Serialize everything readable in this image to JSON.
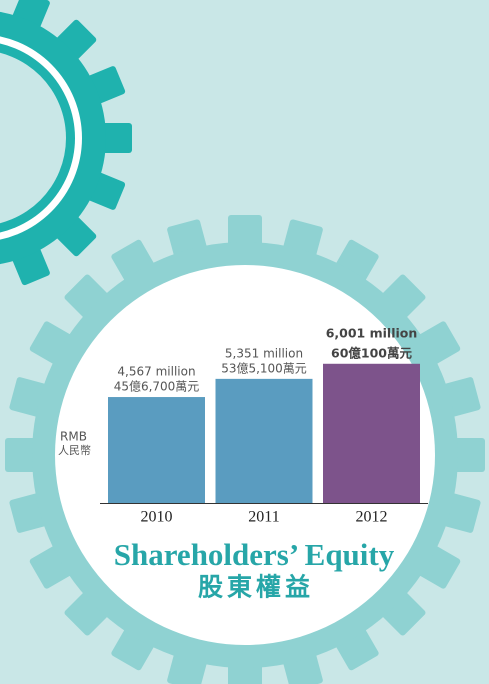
{
  "chart_data": {
    "type": "bar",
    "title": "Shareholders’ Equity",
    "subtitle": "股東權益",
    "y_label": "RMB",
    "y_label_zh": "人民幣",
    "categories": [
      "2010",
      "2011",
      "2012"
    ],
    "values": [
      4567,
      5351,
      6001
    ],
    "value_labels": [
      "4,567 million",
      "5,351 million",
      "6,001 million"
    ],
    "value_labels_zh": [
      "45億6,700萬元",
      "53億5,100萬元",
      "60億100萬元"
    ],
    "colors": [
      "#5a9cc0",
      "#5a9cc0",
      "#7d538b"
    ]
  }
}
